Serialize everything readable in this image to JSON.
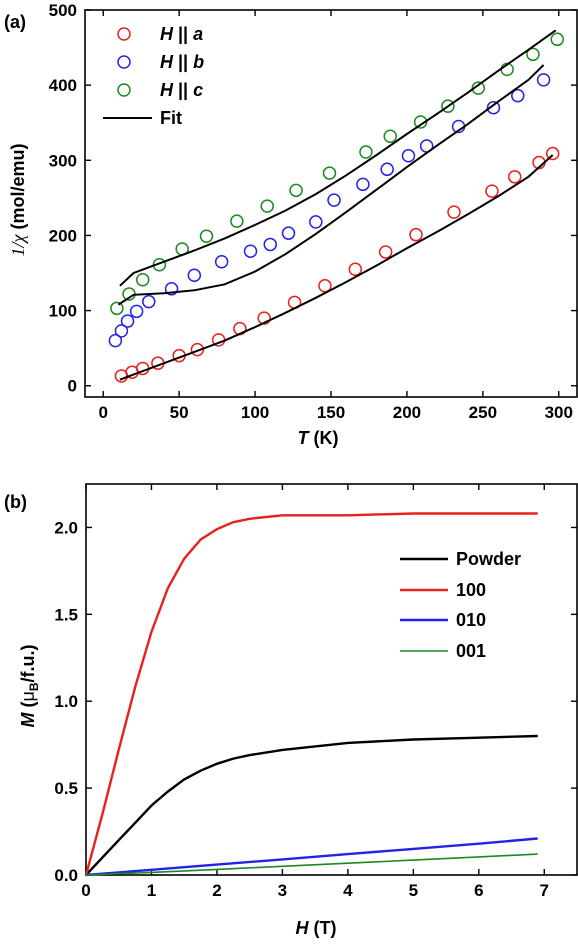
{
  "chart_data": [
    {
      "panel": "(a)",
      "type": "scatter",
      "xlabel": {
        "italic": "T",
        "rest": " (K)"
      },
      "ylabel": {
        "prefix": "1/",
        "greek": "χ",
        "rest": " (mol/emu)"
      },
      "xlim": [
        -12,
        312
      ],
      "ylim": [
        -15,
        500
      ],
      "xticks": [
        0,
        50,
        100,
        150,
        200,
        250,
        300
      ],
      "yticks": [
        0,
        100,
        200,
        300,
        400,
        500
      ],
      "grid": false,
      "legend_position": "top-left",
      "series": [
        {
          "name": "H || a",
          "legend": {
            "H": "H",
            "sep": " || ",
            "axis": "a"
          },
          "color": "#e8211c",
          "marker": "open-circle",
          "x": [
            12,
            19,
            26,
            36,
            50,
            62,
            76,
            90,
            106,
            126,
            146,
            166,
            186,
            206,
            231,
            256,
            271,
            287,
            296
          ],
          "y": [
            13,
            18,
            23,
            30,
            40,
            48,
            61,
            76,
            90,
            111,
            133,
            155,
            178,
            201,
            231,
            259,
            278,
            297,
            309
          ]
        },
        {
          "name": "H || b",
          "legend": {
            "H": "H",
            "sep": " || ",
            "axis": "b"
          },
          "color": "#2124e8",
          "marker": "open-circle",
          "x": [
            8,
            12,
            16,
            22,
            30,
            45,
            60,
            78,
            97,
            110,
            122,
            140,
            152,
            171,
            187,
            201,
            213,
            234,
            257,
            273,
            290
          ],
          "y": [
            60,
            73,
            86,
            99,
            112,
            129,
            147,
            165,
            179,
            188,
            203,
            218,
            247,
            268,
            288,
            306,
            319,
            345,
            370,
            386,
            407
          ]
        },
        {
          "name": "H || c",
          "legend": {
            "H": "H",
            "sep": " || ",
            "axis": "c"
          },
          "color": "#1d8a1f",
          "marker": "open-circle",
          "x": [
            9,
            17,
            26,
            37,
            52,
            68,
            88,
            108,
            127,
            149,
            173,
            189,
            209,
            227,
            247,
            266,
            283,
            299
          ],
          "y": [
            103,
            122,
            141,
            161,
            182,
            199,
            219,
            239,
            260,
            283,
            311,
            332,
            351,
            372,
            396,
            421,
            441,
            461
          ]
        },
        {
          "name": "Fit",
          "color": "#000000",
          "marker": "line",
          "fits": [
            {
              "x": [
                11,
                20,
                40,
                60,
                80,
                100,
                120,
                140,
                160,
                180,
                200,
                220,
                240,
                260,
                280,
                296
              ],
              "y": [
                8,
                15,
                30,
                45,
                60,
                78,
                97,
                117,
                138,
                160,
                183,
                205,
                228,
                252,
                278,
                307
              ]
            },
            {
              "x": [
                10,
                20,
                40,
                60,
                80,
                100,
                120,
                140,
                160,
                180,
                200,
                220,
                240,
                260,
                280,
                290
              ],
              "y": [
                108,
                121,
                123,
                127,
                135,
                152,
                175,
                202,
                231,
                261,
                291,
                320,
                348,
                378,
                407,
                427
              ]
            },
            {
              "x": [
                11,
                20,
                40,
                60,
                80,
                100,
                120,
                140,
                160,
                180,
                200,
                220,
                240,
                260,
                280,
                298
              ],
              "y": [
                133,
                150,
                165,
                180,
                196,
                214,
                233,
                255,
                280,
                307,
                335,
                362,
                390,
                419,
                447,
                473
              ]
            }
          ]
        }
      ]
    },
    {
      "panel": "(b)",
      "type": "line",
      "xlabel": {
        "italic": "H",
        "rest": " (T)"
      },
      "ylabel": {
        "italic": "M",
        "rest1": " (",
        "mu": "μ",
        "sub": "B",
        "rest2": "/f.u.)"
      },
      "xlim": [
        0,
        7.5
      ],
      "ylim": [
        0,
        2.25
      ],
      "xticks": [
        0,
        1,
        2,
        3,
        4,
        5,
        6,
        7
      ],
      "yticks": [
        0.0,
        0.5,
        1.0,
        1.5,
        2.0
      ],
      "ytick_labels": [
        "0.0",
        "0.5",
        "1.0",
        "1.5",
        "2.0"
      ],
      "grid": false,
      "legend_position": "right",
      "series": [
        {
          "name": "Powder",
          "color": "#000000",
          "x": [
            0,
            0.25,
            0.5,
            0.75,
            1.0,
            1.25,
            1.5,
            1.75,
            2.0,
            2.25,
            2.5,
            3.0,
            3.5,
            4.0,
            5.0,
            6.0,
            6.9
          ],
          "y": [
            0,
            0.1,
            0.2,
            0.3,
            0.4,
            0.48,
            0.55,
            0.6,
            0.64,
            0.67,
            0.69,
            0.72,
            0.74,
            0.76,
            0.78,
            0.79,
            0.8
          ]
        },
        {
          "name": "100",
          "color": "#e8211c",
          "x": [
            0,
            0.25,
            0.5,
            0.75,
            1.0,
            1.25,
            1.5,
            1.75,
            2.0,
            2.25,
            2.5,
            2.75,
            3.0,
            3.5,
            4.0,
            5.0,
            6.0,
            6.9
          ],
          "y": [
            0,
            0.35,
            0.72,
            1.08,
            1.4,
            1.65,
            1.82,
            1.93,
            1.99,
            2.03,
            2.05,
            2.06,
            2.07,
            2.07,
            2.07,
            2.08,
            2.08,
            2.08
          ]
        },
        {
          "name": "010",
          "color": "#2124e8",
          "x": [
            0,
            1,
            2,
            3,
            4,
            5,
            6,
            6.9
          ],
          "y": [
            0,
            0.03,
            0.06,
            0.09,
            0.12,
            0.15,
            0.18,
            0.21
          ]
        },
        {
          "name": "001",
          "color": "#1d8a1f",
          "x": [
            0,
            1,
            2,
            3,
            4,
            5,
            6,
            6.9
          ],
          "y": [
            0,
            0.015,
            0.032,
            0.05,
            0.068,
            0.086,
            0.104,
            0.12
          ]
        }
      ]
    }
  ]
}
